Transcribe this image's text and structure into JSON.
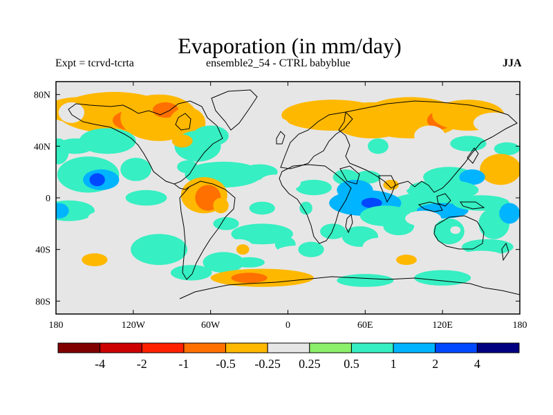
{
  "header": {
    "title": "Evaporation (in mm/day)",
    "left": "Expt = tcrvd-tcrta",
    "center": "ensemble2_54 - CTRL babyblue",
    "right": "JJA"
  },
  "chart_data": {
    "type": "heatmap",
    "title": "Evaporation (in mm/day)",
    "subtitle": "ensemble2_54 - CTRL babyblue",
    "xlim": [
      -180,
      180
    ],
    "ylim": [
      -90,
      90
    ],
    "x_ticks": [
      {
        "value": -180,
        "label": "180"
      },
      {
        "value": -120,
        "label": "120W"
      },
      {
        "value": -60,
        "label": "60W"
      },
      {
        "value": 0,
        "label": "0"
      },
      {
        "value": 60,
        "label": "60E"
      },
      {
        "value": 120,
        "label": "120E"
      },
      {
        "value": 180,
        "label": "180"
      }
    ],
    "y_ticks": [
      {
        "value": 80,
        "label": "80N"
      },
      {
        "value": 40,
        "label": "40N"
      },
      {
        "value": 0,
        "label": "0"
      },
      {
        "value": -40,
        "label": "40S"
      },
      {
        "value": -80,
        "label": "80S"
      }
    ],
    "background_color": "#e6e6e6",
    "colorbar": {
      "colors": [
        "#800000",
        "#cc0000",
        "#ff2000",
        "#ff7000",
        "#ffb800",
        "#e6e6e6",
        "#8cf06a",
        "#36efc2",
        "#00b4ff",
        "#0048ff",
        "#000080"
      ],
      "labels": [
        "-4",
        "-2",
        "-1",
        "-0.5",
        "-0.25",
        "0.25",
        "0.5",
        "1",
        "2",
        "4"
      ]
    },
    "regions": [
      {
        "lon": -162,
        "lat": 68,
        "w": 26,
        "h": 10,
        "v": -0.5
      },
      {
        "lon": -135,
        "lat": 66,
        "w": 44,
        "h": 16,
        "v": -0.5
      },
      {
        "lon": -120,
        "lat": 60,
        "w": 16,
        "h": 8,
        "v": -1
      },
      {
        "lon": -100,
        "lat": 62,
        "w": 30,
        "h": 18,
        "v": -0.5
      },
      {
        "lon": -95,
        "lat": 68,
        "w": 10,
        "h": 6,
        "v": -1
      },
      {
        "lon": -78,
        "lat": 58,
        "w": 14,
        "h": 12,
        "v": -0.3
      },
      {
        "lon": -168,
        "lat": 66,
        "w": 10,
        "h": 8,
        "v": -0.25
      },
      {
        "lon": -178,
        "lat": 36,
        "w": 8,
        "h": 10,
        "v": 0.5
      },
      {
        "lon": -165,
        "lat": 40,
        "w": 14,
        "h": 6,
        "v": 0.5
      },
      {
        "lon": -140,
        "lat": 44,
        "w": 22,
        "h": 10,
        "v": 0.5
      },
      {
        "lon": -155,
        "lat": 18,
        "w": 24,
        "h": 14,
        "v": 0.5
      },
      {
        "lon": -145,
        "lat": 14,
        "w": 14,
        "h": 8,
        "v": 1
      },
      {
        "lon": -148,
        "lat": 14,
        "w": 6,
        "h": 5,
        "v": 2
      },
      {
        "lon": -118,
        "lat": 22,
        "w": 12,
        "h": 9,
        "v": 0.5
      },
      {
        "lon": -170,
        "lat": -10,
        "w": 20,
        "h": 8,
        "v": 0.5
      },
      {
        "lon": -178,
        "lat": -10,
        "w": 8,
        "h": 6,
        "v": 1
      },
      {
        "lon": -110,
        "lat": 0,
        "w": 16,
        "h": 6,
        "v": 0.5
      },
      {
        "lon": -115,
        "lat": -15,
        "w": 40,
        "h": 8,
        "v": -0.25
      },
      {
        "lon": -140,
        "lat": -32,
        "w": 42,
        "h": 10,
        "v": -0.25
      },
      {
        "lon": -160,
        "lat": -45,
        "w": 20,
        "h": 8,
        "v": -0.25
      },
      {
        "lon": -150,
        "lat": -48,
        "w": 10,
        "h": 5,
        "v": -0.5
      },
      {
        "lon": -100,
        "lat": -40,
        "w": 22,
        "h": 12,
        "v": 0.5
      },
      {
        "lon": -140,
        "lat": -68,
        "w": 26,
        "h": 6,
        "v": -0.25
      },
      {
        "lon": -160,
        "lat": -10,
        "w": 8,
        "h": 4,
        "v": 0.5
      },
      {
        "lon": -70,
        "lat": 40,
        "w": 18,
        "h": 12,
        "v": 0.5
      },
      {
        "lon": -60,
        "lat": 48,
        "w": 14,
        "h": 8,
        "v": 0.5
      },
      {
        "lon": -82,
        "lat": 44,
        "w": 8,
        "h": 5,
        "v": -0.5
      },
      {
        "lon": -48,
        "lat": 30,
        "w": 8,
        "h": 6,
        "v": -0.25
      },
      {
        "lon": -50,
        "lat": 18,
        "w": 30,
        "h": 10,
        "v": 0.5
      },
      {
        "lon": -22,
        "lat": 20,
        "w": 14,
        "h": 6,
        "v": 0.5
      },
      {
        "lon": -78,
        "lat": 24,
        "w": 8,
        "h": 5,
        "v": 0.5
      },
      {
        "lon": -65,
        "lat": 2,
        "w": 18,
        "h": 14,
        "v": -0.5
      },
      {
        "lon": -62,
        "lat": 0,
        "w": 10,
        "h": 10,
        "v": -1
      },
      {
        "lon": -52,
        "lat": -6,
        "w": 6,
        "h": 6,
        "v": -0.5
      },
      {
        "lon": -60,
        "lat": -22,
        "w": 8,
        "h": 6,
        "v": -0.25
      },
      {
        "lon": -48,
        "lat": -20,
        "w": 10,
        "h": 5,
        "v": 0.5
      },
      {
        "lon": -10,
        "lat": 12,
        "w": 12,
        "h": 6,
        "v": -0.25
      },
      {
        "lon": -20,
        "lat": -8,
        "w": 10,
        "h": 5,
        "v": 0.5
      },
      {
        "lon": -20,
        "lat": -28,
        "w": 24,
        "h": 8,
        "v": 0.5
      },
      {
        "lon": -38,
        "lat": -40,
        "w": 12,
        "h": 8,
        "v": -0.25
      },
      {
        "lon": -35,
        "lat": -40,
        "w": 5,
        "h": 4,
        "v": -0.5
      },
      {
        "lon": -50,
        "lat": -50,
        "w": 16,
        "h": 8,
        "v": 0.5
      },
      {
        "lon": -20,
        "lat": -62,
        "w": 40,
        "h": 7,
        "v": -0.5
      },
      {
        "lon": -30,
        "lat": -62,
        "w": 14,
        "h": 4,
        "v": -1
      },
      {
        "lon": -75,
        "lat": -58,
        "w": 16,
        "h": 6,
        "v": 0.5
      },
      {
        "lon": 35,
        "lat": 64,
        "w": 40,
        "h": 12,
        "v": -0.5
      },
      {
        "lon": 65,
        "lat": 60,
        "w": 30,
        "h": 14,
        "v": -0.5
      },
      {
        "lon": 95,
        "lat": 62,
        "w": 40,
        "h": 16,
        "v": -0.5
      },
      {
        "lon": 118,
        "lat": 60,
        "w": 10,
        "h": 7,
        "v": -1
      },
      {
        "lon": 140,
        "lat": 64,
        "w": 28,
        "h": 12,
        "v": -0.5
      },
      {
        "lon": 160,
        "lat": 58,
        "w": 16,
        "h": 8,
        "v": -0.25
      },
      {
        "lon": -8,
        "lat": 54,
        "w": 10,
        "h": 8,
        "v": -0.25
      },
      {
        "lon": 110,
        "lat": 48,
        "w": 12,
        "h": 8,
        "v": -0.25
      },
      {
        "lon": 70,
        "lat": 40,
        "w": 8,
        "h": 6,
        "v": 0.5
      },
      {
        "lon": 140,
        "lat": 42,
        "w": 14,
        "h": 6,
        "v": 0.5
      },
      {
        "lon": 170,
        "lat": 38,
        "w": 10,
        "h": 5,
        "v": 0.5
      },
      {
        "lon": 165,
        "lat": 22,
        "w": 16,
        "h": 12,
        "v": -0.5
      },
      {
        "lon": 120,
        "lat": 28,
        "w": 10,
        "h": 5,
        "v": -0.25
      },
      {
        "lon": 140,
        "lat": 28,
        "w": 10,
        "h": 5,
        "v": -0.25
      },
      {
        "lon": 125,
        "lat": 16,
        "w": 20,
        "h": 8,
        "v": 0.5
      },
      {
        "lon": 143,
        "lat": 16,
        "w": 10,
        "h": 6,
        "v": 1
      },
      {
        "lon": 120,
        "lat": 6,
        "w": 28,
        "h": 8,
        "v": 0.5
      },
      {
        "lon": 108,
        "lat": -4,
        "w": 28,
        "h": 8,
        "v": 0.5
      },
      {
        "lon": 120,
        "lat": -10,
        "w": 20,
        "h": 6,
        "v": 1
      },
      {
        "lon": 150,
        "lat": -4,
        "w": 22,
        "h": 6,
        "v": 0.5
      },
      {
        "lon": 160,
        "lat": -20,
        "w": 12,
        "h": 12,
        "v": 0.5
      },
      {
        "lon": 172,
        "lat": -12,
        "w": 8,
        "h": 8,
        "v": 1
      },
      {
        "lon": 85,
        "lat": 10,
        "w": 10,
        "h": 6,
        "v": -0.25
      },
      {
        "lon": 80,
        "lat": 10,
        "w": 6,
        "h": 4,
        "v": -0.5
      },
      {
        "lon": 62,
        "lat": 16,
        "w": 10,
        "h": 5,
        "v": 0.5
      },
      {
        "lon": 20,
        "lat": 34,
        "w": 10,
        "h": 5,
        "v": -0.25
      },
      {
        "lon": 20,
        "lat": 8,
        "w": 14,
        "h": 6,
        "v": 0.5
      },
      {
        "lon": 45,
        "lat": 16,
        "w": 10,
        "h": 6,
        "v": 0.5
      },
      {
        "lon": 52,
        "lat": 6,
        "w": 14,
        "h": 8,
        "v": 1
      },
      {
        "lon": 60,
        "lat": -4,
        "w": 28,
        "h": 10,
        "v": 1
      },
      {
        "lon": 65,
        "lat": -4,
        "w": 8,
        "h": 4,
        "v": 2
      },
      {
        "lon": 76,
        "lat": -14,
        "w": 20,
        "h": 8,
        "v": 0.5
      },
      {
        "lon": 86,
        "lat": -22,
        "w": 12,
        "h": 7,
        "v": 0.5
      },
      {
        "lon": 56,
        "lat": -30,
        "w": 14,
        "h": 8,
        "v": 0.5
      },
      {
        "lon": 35,
        "lat": -26,
        "w": 10,
        "h": 6,
        "v": 0.5
      },
      {
        "lon": 70,
        "lat": -38,
        "w": 12,
        "h": 7,
        "v": -0.25
      },
      {
        "lon": 105,
        "lat": -16,
        "w": 14,
        "h": 6,
        "v": -0.25
      },
      {
        "lon": 125,
        "lat": -26,
        "w": 12,
        "h": 10,
        "v": 0.5
      },
      {
        "lon": 130,
        "lat": -25,
        "w": 4,
        "h": 3,
        "v": -0.25
      },
      {
        "lon": 108,
        "lat": -42,
        "w": 22,
        "h": 6,
        "v": -0.25
      },
      {
        "lon": 92,
        "lat": -48,
        "w": 8,
        "h": 4,
        "v": -0.5
      },
      {
        "lon": 155,
        "lat": -38,
        "w": 20,
        "h": 6,
        "v": 0.5
      },
      {
        "lon": 150,
        "lat": -46,
        "w": 18,
        "h": 5,
        "v": -0.25
      },
      {
        "lon": -2,
        "lat": -36,
        "w": 8,
        "h": 6,
        "v": 0.5
      },
      {
        "lon": 7,
        "lat": -42,
        "w": 16,
        "h": 5,
        "v": -0.25
      },
      {
        "lon": 18,
        "lat": -40,
        "w": 10,
        "h": 6,
        "v": 0.5
      },
      {
        "lon": 88,
        "lat": -64,
        "w": 26,
        "h": 6,
        "v": -0.25
      },
      {
        "lon": 120,
        "lat": -62,
        "w": 22,
        "h": 6,
        "v": 0.5
      },
      {
        "lon": 60,
        "lat": -64,
        "w": 22,
        "h": 5,
        "v": 0.5
      },
      {
        "lon": -1,
        "lat": 28,
        "w": 6,
        "h": 5,
        "v": -0.25
      },
      {
        "lon": 4,
        "lat": 12,
        "w": 6,
        "h": 5,
        "v": -0.25
      },
      {
        "lon": 14,
        "lat": -8,
        "w": 5,
        "h": 5,
        "v": 0.5
      },
      {
        "lon": -30,
        "lat": -50,
        "w": 12,
        "h": 4,
        "v": 0.5
      }
    ]
  }
}
